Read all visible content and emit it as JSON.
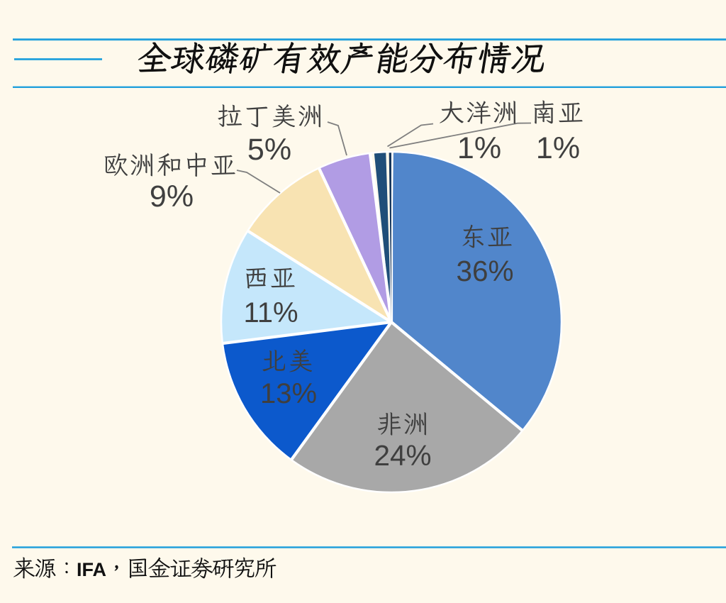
{
  "page": {
    "background_color": "#FEF9EC",
    "accent_line_color": "#21A0DC"
  },
  "header": {
    "title": "全球磷矿有效产能分布情况",
    "title_color": "#101010"
  },
  "chart_data": {
    "type": "pie",
    "title": "全球磷矿有效产能分布情况",
    "categories": [
      "东亚",
      "非洲",
      "北美",
      "西亚",
      "欧洲和中亚",
      "拉丁美洲",
      "大洋洲",
      "南亚"
    ],
    "values": [
      36,
      24,
      13,
      11,
      9,
      5,
      1,
      1
    ],
    "percent_labels": [
      "36%",
      "24%",
      "13%",
      "11%",
      "9%",
      "5%",
      "1%",
      "1%"
    ],
    "unit": "%",
    "slice_colors": [
      "#5186CB",
      "#A8A8A8",
      "#0C59CC",
      "#C5E7FB",
      "#F8E3B2",
      "#B19CE4",
      "#1F4E79",
      "#16365C"
    ],
    "label_color": "#3F3F3F",
    "leader_line_color": "#7F7F7F",
    "separator_color": "#FFFFFF",
    "start_angle_deg": 0,
    "clockwise": true,
    "legend": "none",
    "label_style": "category name + percent; inside for large slices, outside with leader lines for small slices"
  },
  "footer": {
    "source_text": "来源：IFA，国金证券研究所",
    "source_color": "#111111"
  }
}
